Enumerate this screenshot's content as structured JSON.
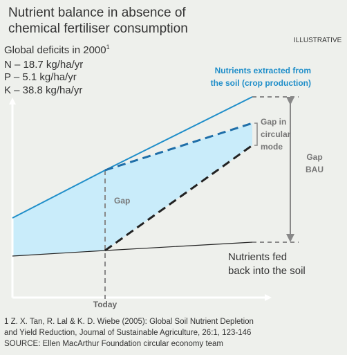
{
  "header": {
    "title": [
      "Nutrient balance in absence of",
      "chemical fertiliser consumption"
    ],
    "tag": "ILLUSTRATIVE"
  },
  "deficits": {
    "heading": "Global deficits in 2000",
    "note_mark": "1",
    "items": [
      "N – 18.7 kg/ha/yr",
      "P – 5.1 kg/ha/yr",
      "K – 38.8 kg/ha/yr"
    ]
  },
  "labels": {
    "extracted": [
      "Nutrients extracted from",
      "the soil (crop production)"
    ],
    "gap_circular": [
      "Gap in",
      "circular",
      "mode"
    ],
    "gap_bau": [
      "Gap",
      "BAU"
    ],
    "gap": "Gap",
    "fed_back": [
      "Nutrients fed",
      "back into the soil"
    ],
    "today": "Today"
  },
  "footnotes": [
    "1 Z. X. Tan, R. Lal & K. D. Wiebe (2005): Global Soil Nutrient Depletion",
    "and Yield Reduction, Journal of Sustainable Agriculture, 26:1, 123-146",
    "SOURCE: Ellen MacArthur Foundation circular economy team"
  ]
}
